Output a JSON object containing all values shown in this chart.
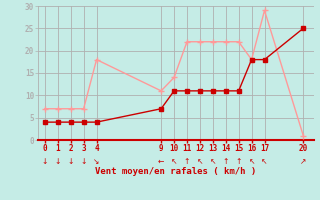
{
  "xlabel": "Vent moyen/en rafales ( km/h )",
  "bg_color": "#c5ece6",
  "grid_color": "#b0b0b0",
  "axis_color": "#cc0000",
  "text_color": "#cc0000",
  "x_ticks": [
    0,
    1,
    2,
    3,
    4,
    9,
    10,
    11,
    12,
    13,
    14,
    15,
    16,
    17,
    20
  ],
  "ylim": [
    0,
    30
  ],
  "yticks": [
    0,
    5,
    10,
    15,
    20,
    25,
    30
  ],
  "mean_x": [
    0,
    1,
    2,
    3,
    4,
    9,
    10,
    11,
    12,
    13,
    14,
    15,
    16,
    17,
    20
  ],
  "mean_y": [
    4,
    4,
    4,
    4,
    4,
    7,
    11,
    11,
    11,
    11,
    11,
    11,
    18,
    18,
    25
  ],
  "gust_x": [
    0,
    1,
    2,
    3,
    4,
    9,
    10,
    11,
    12,
    13,
    14,
    15,
    16,
    17,
    20
  ],
  "gust_y": [
    7,
    7,
    7,
    7,
    18,
    11,
    14,
    22,
    22,
    22,
    22,
    22,
    18,
    29,
    1
  ],
  "mean_color": "#cc0000",
  "gust_color": "#ff9999",
  "wind_arrows": [
    {
      "x": 0,
      "sym": "↓"
    },
    {
      "x": 1,
      "sym": "↓"
    },
    {
      "x": 2,
      "sym": "↓"
    },
    {
      "x": 3,
      "sym": "↓"
    },
    {
      "x": 4,
      "sym": "↘"
    },
    {
      "x": 9,
      "sym": "←"
    },
    {
      "x": 10,
      "sym": "↖"
    },
    {
      "x": 11,
      "sym": "↑"
    },
    {
      "x": 12,
      "sym": "↖"
    },
    {
      "x": 13,
      "sym": "↖"
    },
    {
      "x": 14,
      "sym": "↑"
    },
    {
      "x": 15,
      "sym": "↑"
    },
    {
      "x": 16,
      "sym": "↖"
    },
    {
      "x": 17,
      "sym": "↖"
    },
    {
      "x": 20,
      "sym": "↗"
    }
  ]
}
